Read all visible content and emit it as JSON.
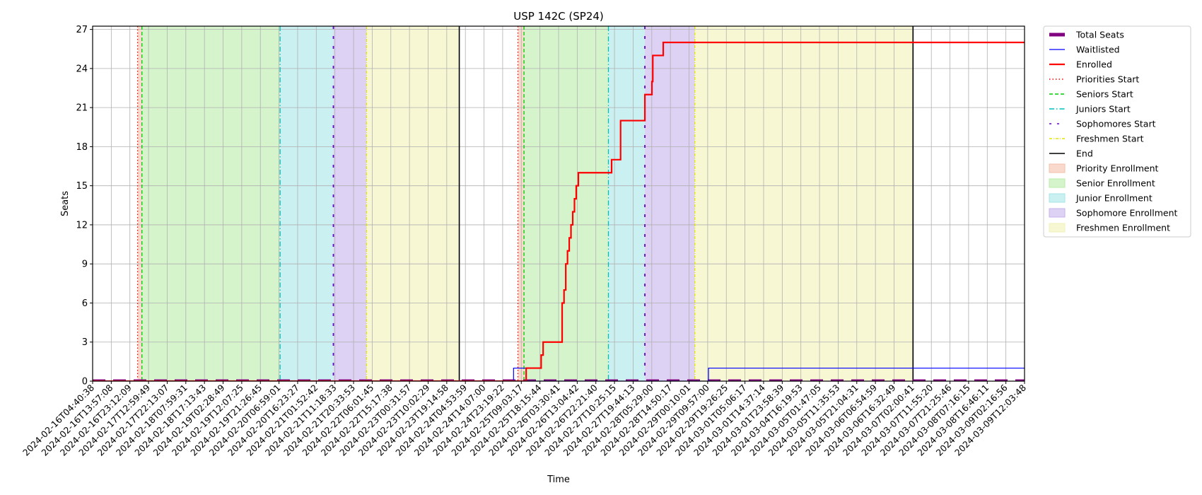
{
  "chart_data": {
    "type": "line",
    "title": "USP 142C (SP24)",
    "xlabel": "Time",
    "ylabel": "Seats",
    "x_range": [
      "2024-02-16T04:40:38",
      "2024-03-09T12:03:48"
    ],
    "ylim": [
      0,
      27.25
    ],
    "y_ticks": [
      0,
      3,
      6,
      9,
      12,
      15,
      18,
      21,
      24,
      27
    ],
    "grid": true,
    "legend_position": "outside-right",
    "x_tick_labels": [
      "2024-02-16T04:40:38",
      "2024-02-16T13:57:08",
      "2024-02-16T23:12:09",
      "2024-02-17T12:59:49",
      "2024-02-17T22:13:07",
      "2024-02-18T07:59:31",
      "2024-02-18T17:13:43",
      "2024-02-19T02:28:49",
      "2024-02-19T12:07:25",
      "2024-02-19T21:26:45",
      "2024-02-20T06:59:01",
      "2024-02-20T16:23:27",
      "2024-02-21T01:52:42",
      "2024-02-21T11:18:33",
      "2024-02-21T20:33:53",
      "2024-02-22T06:01:45",
      "2024-02-22T15:17:38",
      "2024-02-23T00:31:57",
      "2024-02-23T10:02:29",
      "2024-02-23T19:14:58",
      "2024-02-24T04:53:59",
      "2024-02-24T14:07:00",
      "2024-02-24T23:19:22",
      "2024-02-25T09:03:17",
      "2024-02-25T18:15:44",
      "2024-02-26T03:30:41",
      "2024-02-26T13:04:42",
      "2024-02-26T22:21:40",
      "2024-02-27T10:25:15",
      "2024-02-27T19:44:13",
      "2024-02-28T05:29:00",
      "2024-02-28T14:50:17",
      "2024-02-29T00:10:01",
      "2024-02-29T09:57:00",
      "2024-02-29T19:26:25",
      "2024-03-01T05:06:17",
      "2024-03-01T14:37:14",
      "2024-03-01T23:58:39",
      "2024-03-04T16:19:53",
      "2024-03-05T01:47:05",
      "2024-03-05T11:35:53",
      "2024-03-05T21:04:31",
      "2024-03-06T06:54:59",
      "2024-03-06T16:32:49",
      "2024-03-07T02:00:41",
      "2024-03-07T11:55:20",
      "2024-03-07T21:25:46",
      "2024-03-08T07:16:15",
      "2024-03-08T16:46:11",
      "2024-03-09T02:16:56",
      "2024-03-09T12:03:48"
    ],
    "series": [
      {
        "name": "Total Seats",
        "color": "#800080",
        "style": "thick-dashed",
        "x": [
          "2024-02-16T04:40:38",
          "2024-03-09T12:03:48"
        ],
        "values": [
          0,
          0
        ]
      },
      {
        "name": "Waitlisted",
        "color": "#0000ff",
        "style": "solid-thin",
        "x": [
          "2024-02-16T04:40:38",
          "2024-02-26T06:00:00",
          "2024-02-26T06:30:00",
          "2024-02-26T13:30:00",
          "2024-02-26T13:45:00",
          "2024-03-01T22:00:00",
          "2024-03-01T22:30:00",
          "2024-03-09T12:03:48"
        ],
        "values": [
          0,
          0,
          1,
          1,
          0,
          0,
          1,
          1
        ]
      },
      {
        "name": "Enrolled",
        "color": "#ff0000",
        "style": "solid-thick",
        "x": [
          "2024-02-16T04:40:38",
          "2024-02-26T13:30:00",
          "2024-02-26T13:45:00",
          "2024-02-26T22:00:00",
          "2024-02-26T22:21:40",
          "2024-02-26T23:30:00",
          "2024-02-27T10:00:00",
          "2024-02-27T10:25:15",
          "2024-02-27T11:30:00",
          "2024-02-27T12:30:00",
          "2024-02-27T13:30:00",
          "2024-02-27T14:30:00",
          "2024-02-27T15:30:00",
          "2024-02-27T16:30:00",
          "2024-02-27T17:30:00",
          "2024-02-27T18:30:00",
          "2024-02-27T19:44:13",
          "2024-02-27T20:30:00",
          "2024-02-28T14:50:17",
          "2024-02-28T17:00:00",
          "2024-02-28T20:00:00",
          "2024-02-29T00:10:01",
          "2024-02-29T09:57:00",
          "2024-02-29T14:00:00",
          "2024-02-29T14:30:00",
          "2024-02-29T15:00:00",
          "2024-02-29T20:30:00",
          "2024-03-09T12:03:48"
        ],
        "values": [
          0,
          0,
          1,
          1,
          2,
          3,
          3,
          6,
          7,
          9,
          10,
          11,
          12,
          13,
          14,
          15,
          16,
          16,
          17,
          17,
          20,
          20,
          22,
          23,
          25,
          25,
          26,
          26
        ]
      }
    ],
    "events": [
      {
        "name": "Priorities Start",
        "color": "#ff0000",
        "style": "dotted",
        "x": [
          "2024-02-17T06:30:00",
          "2024-02-26T09:00:00"
        ]
      },
      {
        "name": "Seniors Start",
        "color": "#00cc00",
        "style": "dashed",
        "x": [
          "2024-02-17T09:00:00",
          "2024-02-26T12:30:00"
        ]
      },
      {
        "name": "Juniors Start",
        "color": "#00bfbf",
        "style": "dashdot",
        "x": [
          "2024-02-20T16:23:27",
          "2024-02-28T13:00:00"
        ]
      },
      {
        "name": "Sophomores Start",
        "color": "#6600cc",
        "style": "dash-dot-sparse",
        "x": [
          "2024-02-21T23:00:00",
          "2024-02-29T09:57:00"
        ]
      },
      {
        "name": "Freshmen Start",
        "color": "#e6e600",
        "style": "dashdot-short",
        "x": [
          "2024-02-22T18:00:00",
          "2024-03-01T14:37:14"
        ]
      },
      {
        "name": "End",
        "color": "#000000",
        "style": "solid",
        "x": [
          "2024-02-24T23:19:22",
          "2024-03-06T20:00:00"
        ]
      }
    ],
    "periods": [
      {
        "name": "Priority Enrollment",
        "color": "#f4c0a8",
        "spans": [
          [
            "2024-02-17T06:30:00",
            "2024-02-17T09:00:00"
          ],
          [
            "2024-02-26T09:00:00",
            "2024-02-26T12:30:00"
          ]
        ]
      },
      {
        "name": "Senior Enrollment",
        "color": "#b9ecaa",
        "spans": [
          [
            "2024-02-17T09:00:00",
            "2024-02-20T16:23:27"
          ],
          [
            "2024-02-26T12:30:00",
            "2024-02-28T13:00:00"
          ]
        ]
      },
      {
        "name": "Junior Enrollment",
        "color": "#a6e6ea",
        "spans": [
          [
            "2024-02-20T16:23:27",
            "2024-02-21T23:00:00"
          ],
          [
            "2024-02-28T13:00:00",
            "2024-02-29T09:57:00"
          ]
        ]
      },
      {
        "name": "Sophomore Enrollment",
        "color": "#c7b3ec",
        "spans": [
          [
            "2024-02-21T23:00:00",
            "2024-02-22T18:00:00"
          ],
          [
            "2024-02-29T09:57:00",
            "2024-03-01T14:37:14"
          ]
        ]
      },
      {
        "name": "Freshmen Enrollment",
        "color": "#f2f2b8",
        "spans": [
          [
            "2024-02-22T18:00:00",
            "2024-02-24T23:19:22"
          ],
          [
            "2024-03-01T14:37:14",
            "2024-03-06T20:00:00"
          ]
        ]
      }
    ]
  }
}
